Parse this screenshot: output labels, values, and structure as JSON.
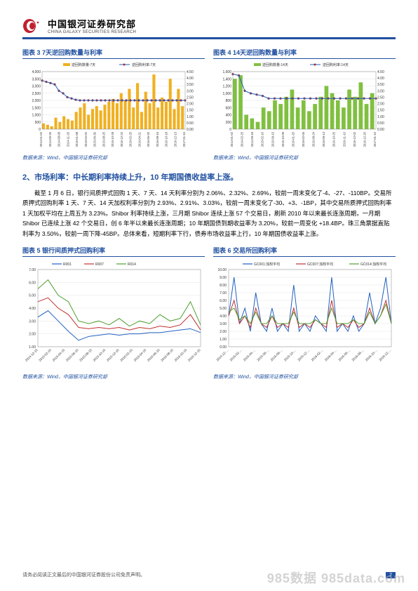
{
  "header": {
    "title_cn": "中国银河证券研究部",
    "title_en": "CHINA GALAXY SECURITIES RESEARCH",
    "logo_color": "#c02030",
    "border_color": "#2050a0"
  },
  "chart3": {
    "title": "图表 3  7天逆回购数量与利率",
    "legend": [
      "逆回购数量:7天",
      "逆回购利率:7天"
    ],
    "colors": {
      "bars": "#f0b020",
      "line": "#2060c0",
      "markers": "#a03030"
    },
    "y_left": {
      "min": 0,
      "max": 4000,
      "step": 500
    },
    "y_right": {
      "min": 0.0,
      "max": 4.5,
      "step": 0.5
    },
    "x_labels": [
      "2014-01-02",
      "2014-05-26",
      "2014-08-08",
      "2014-11-20",
      "2015-01-08",
      "2015-04-02",
      "2015-06-30",
      "2015-08-25",
      "2015-10-28",
      "2015-12-22",
      "2016-02-25",
      "2016-04-21",
      "2016-06-20",
      "2016-08-15",
      "2016-10-18",
      "2016-12-13",
      "2017-01-16"
    ],
    "bars": [
      400,
      300,
      200,
      800,
      500,
      900,
      700,
      600,
      1200,
      1500,
      1800,
      1000,
      1400,
      1600,
      1300,
      1700,
      1900,
      2100,
      1800,
      2500,
      2000,
      2800,
      1500,
      3200,
      1200,
      2600,
      1800,
      3800,
      1500,
      2200,
      1900,
      3500,
      1400,
      2800,
      1600
    ],
    "line": [
      3.8,
      3.7,
      3.6,
      3.5,
      3.0,
      2.8,
      2.5,
      2.4,
      2.3,
      2.25,
      2.25,
      2.25,
      2.25,
      2.25,
      2.25,
      2.25,
      2.25,
      2.25,
      2.25,
      2.25,
      2.25,
      2.25,
      2.25,
      2.25,
      2.25,
      2.25,
      2.25,
      2.25,
      2.25,
      2.25,
      2.25,
      2.25,
      2.25,
      2.25,
      2.25
    ],
    "source": "数据来源：Wind，中国银河证券研究部"
  },
  "chart4": {
    "title": "图表 4  14天逆回购数量与利率",
    "legend": [
      "逆回购数量:14天",
      "逆回购利率:14天"
    ],
    "colors": {
      "bars": "#80c040",
      "line": "#2060c0",
      "markers": "#a03030"
    },
    "y_left": {
      "min": 0,
      "max": 1600,
      "step": 200
    },
    "y_right": {
      "min": 0.0,
      "max": 4.5,
      "step": 0.5
    },
    "x_labels": [
      "2014-01-02",
      "2014-02-25",
      "2014-09-18",
      "2015-02-10",
      "2015-09-15",
      "2015-10-09",
      "2016-01-20",
      "2016-02-05",
      "2016-08-24",
      "2016-09-13",
      "2016-10-25",
      "2016-11-10",
      "2016-12-02",
      "2016-12-20",
      "2017-01-10"
    ],
    "bars": [
      1400,
      1500,
      400,
      300,
      200,
      600,
      500,
      800,
      700,
      900,
      1100,
      600,
      800,
      500,
      700,
      900,
      1200,
      1000,
      800,
      600,
      1100,
      900,
      1300,
      700,
      1000
    ],
    "line": [
      4.3,
      4.2,
      3.0,
      2.8,
      2.7,
      2.6,
      2.4,
      2.4,
      2.4,
      2.4,
      2.4,
      2.4,
      2.4,
      2.4,
      2.4,
      2.4,
      2.4,
      2.4,
      2.4,
      2.4,
      2.4,
      2.4,
      2.4,
      2.4,
      2.4
    ],
    "source": "数据来源：Wind，中国银河证券研究部"
  },
  "section2": {
    "title": "2、市场利率：中长期利率持续上升，10 年期国债收益率上涨。",
    "para1": "截至 1 月 6 日，银行间质押式回购 1 天、7 天、14 天利率分别为 2.06%、2.32%、2.69%，较前一周末变化了-4、-27、-110BP。交易所质押式回购利率 1 天、7 天、14 天加权利率分别为 2.93%、2.91%、3.03%，较前一周末变化了-30、+3、-1BP，其中交易所质押式回购利率 1 天加权平均在上周五为 3.23%。Shibor 利率持续上涨，三月期 Shibor 连续上涨 57 个交易日，刷新 2010 年以来最长连涨周期，一月期 Shibor 已连续上涨 42 个交易日，创 6 年半以来最长连涨周期；10 年期国债到期收益率为 3.20%，较前一周变化 +18.4BP。珠三角票据直贴利率为 3.50%，较前一周下降-45BP。总体来看，短期利率下行，债券市场收益率上行，10 年期国债收益率上涨。"
  },
  "chart5": {
    "title": "图表 5  银行间质押式回购利率",
    "legend": [
      "R001",
      "R007",
      "R014"
    ],
    "colors": {
      "R001": "#2060c0",
      "R007": "#c03030",
      "R014": "#50a030"
    },
    "y": {
      "min": 1.0,
      "max": 7.0,
      "step": 1.0
    },
    "x_labels": [
      "2014-12-15",
      "2015-02-15",
      "2015-04-15",
      "2015-06-15",
      "2015-08-15",
      "2015-10-15",
      "2015-12-15",
      "2016-02-15",
      "2016-04-15",
      "2016-06-15",
      "2016-08-15",
      "2016-10-15",
      "2016-12-15"
    ],
    "R001": [
      3.3,
      3.8,
      3.0,
      2.2,
      1.5,
      1.8,
      1.9,
      2.0,
      1.9,
      2.0,
      2.0,
      2.1,
      2.1,
      2.2,
      2.3,
      2.4,
      2.1
    ],
    "R007": [
      4.5,
      4.8,
      4.0,
      3.5,
      2.5,
      2.4,
      2.5,
      2.4,
      2.5,
      2.3,
      2.5,
      2.4,
      2.6,
      2.5,
      2.7,
      3.5,
      2.3
    ],
    "R014": [
      5.5,
      6.2,
      5.0,
      4.5,
      3.0,
      2.8,
      3.0,
      2.7,
      3.2,
      2.6,
      3.0,
      2.8,
      3.5,
      3.0,
      3.2,
      4.5,
      2.7
    ],
    "source": "数据来源：Wind，中国银河证券研究部"
  },
  "chart6": {
    "title": "图表 6  交易所回购利率",
    "legend": [
      "GC001:加权平均",
      "GC007:加权平均",
      "GC014:加权平均"
    ],
    "colors": {
      "GC001": "#2060c0",
      "GC007": "#c03030",
      "GC014": "#50a030"
    },
    "y": {
      "min": 0.0,
      "max": 10.0,
      "step": 1.0
    },
    "x_labels": [
      "2014-12-…",
      "2015-02-…",
      "2015-04-…",
      "2015-06-…",
      "2015-08-…",
      "2015-10-…",
      "2015-12-…",
      "2016-02-…",
      "2016-04-…",
      "2016-06-…",
      "2016-08-…",
      "2016-10-…",
      "2016-12-…"
    ],
    "GC001": [
      4,
      9,
      3,
      5,
      2,
      7,
      3,
      2,
      5,
      2,
      3,
      2,
      8,
      2,
      3,
      2,
      4,
      3,
      2,
      9,
      2,
      3,
      2,
      4,
      2,
      3,
      7,
      3,
      5,
      9,
      3
    ],
    "GC007": [
      4,
      6,
      3,
      4,
      2.5,
      5,
      3,
      2.5,
      4,
      2.5,
      3,
      2.5,
      5,
      2.5,
      3,
      2.5,
      3.5,
      3,
      2.5,
      6,
      2.5,
      3,
      2.5,
      3.5,
      2.5,
      3,
      5,
      3,
      4,
      6,
      3
    ],
    "GC014": [
      4.5,
      5,
      3.5,
      4,
      3,
      4.5,
      3,
      3,
      4,
      3,
      3,
      3,
      4.5,
      3,
      3,
      3,
      3.5,
      3,
      3,
      5,
      3,
      3,
      3,
      3.5,
      3,
      3,
      4.5,
      3,
      4,
      5.5,
      3
    ],
    "source": "数据来源：Wind，中国银河证券研究部"
  },
  "footer": {
    "disclaimer": "请务必阅读正文最后的中国银河证券股份公司免责声明。",
    "page": "2"
  },
  "watermark": "985数据 985data.com"
}
